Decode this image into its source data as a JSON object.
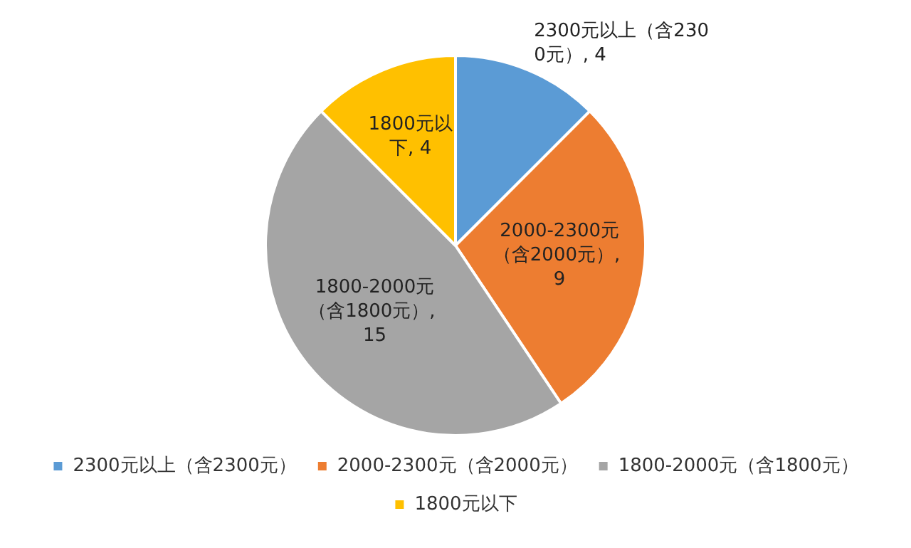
{
  "chart_data": {
    "type": "pie",
    "categories": [
      "2300元以上（含2300元）",
      "2000-2300元（含2000元）",
      "1800-2000元（含1800元）",
      "1800元以下"
    ],
    "values": [
      4,
      9,
      15,
      4
    ],
    "colors": [
      "#5b9bd5",
      "#ed7d31",
      "#a5a5a5",
      "#ffc000"
    ],
    "value_labels": [
      "2300元以上（含2300元）, 4",
      "2000-2300元（含2000元）, 9",
      "1800-2000元（含1800元）, 15",
      "1800元以下, 4"
    ],
    "legend": "bottom"
  }
}
